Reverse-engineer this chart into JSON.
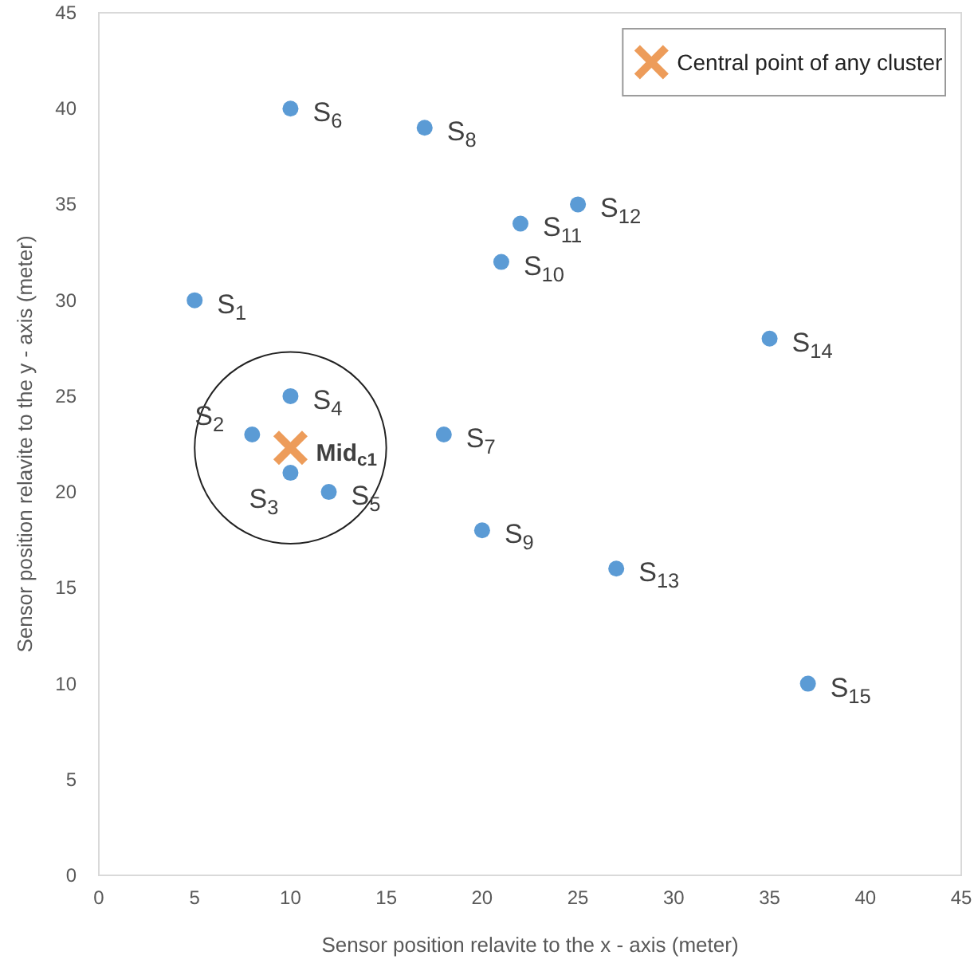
{
  "chart_data": {
    "type": "scatter",
    "xlabel": "Sensor position relavite to the x - axis (meter)",
    "ylabel": "Sensor position relavite to the y - axis (meter)",
    "xlim": [
      0,
      45
    ],
    "xticks": [
      0,
      5,
      10,
      15,
      20,
      25,
      30,
      35,
      40,
      45
    ],
    "ylim": [
      0,
      45
    ],
    "yticks": [
      0,
      5,
      10,
      15,
      20,
      25,
      30,
      35,
      40,
      45
    ],
    "grid": false,
    "legend": "top right",
    "series": [
      {
        "color": "#5b9bd5",
        "marker": "circle",
        "x": [
          5,
          8,
          10,
          10,
          12,
          10,
          18,
          17,
          20,
          21,
          22,
          25,
          27,
          35,
          37
        ],
        "values": [
          30,
          23,
          21,
          25,
          20,
          40,
          23,
          39,
          18,
          32,
          34,
          35,
          16,
          28,
          10
        ]
      },
      {
        "name": "Central point of any cluster",
        "color": "#ed9c5a",
        "marker": "cross",
        "x": [
          10
        ],
        "values": [
          22.3
        ]
      }
    ],
    "annotations": [
      {
        "text": "S$_{1}$",
        "x": 5,
        "y": 30
      },
      {
        "text": "S$_{2}$",
        "x": 8,
        "y": 23
      },
      {
        "text": "S$_{3}$",
        "x": 10,
        "y": 21
      },
      {
        "text": "S$_{4}$",
        "x": 10,
        "y": 25
      },
      {
        "text": "S$_{5}$",
        "x": 12,
        "y": 20
      },
      {
        "text": "S$_{6}$",
        "x": 10,
        "y": 40
      },
      {
        "text": "S$_{7}$",
        "x": 18,
        "y": 23
      },
      {
        "text": "S$_{8}$",
        "x": 17,
        "y": 39
      },
      {
        "text": "S$_{9}$",
        "x": 20,
        "y": 18
      },
      {
        "text": "S$_{10}$",
        "x": 21,
        "y": 32
      },
      {
        "text": "S$_{11}$",
        "x": 22,
        "y": 34
      },
      {
        "text": "S$_{12}$",
        "x": 25,
        "y": 35
      },
      {
        "text": "S$_{13}$",
        "x": 27,
        "y": 16
      },
      {
        "text": "S$_{14}$",
        "x": 35,
        "y": 28
      },
      {
        "text": "S$_{15}$",
        "x": 37,
        "y": 10
      },
      {
        "text": "Mid$_{c1}$",
        "x": 10,
        "y": 22.3
      }
    ]
  }
}
